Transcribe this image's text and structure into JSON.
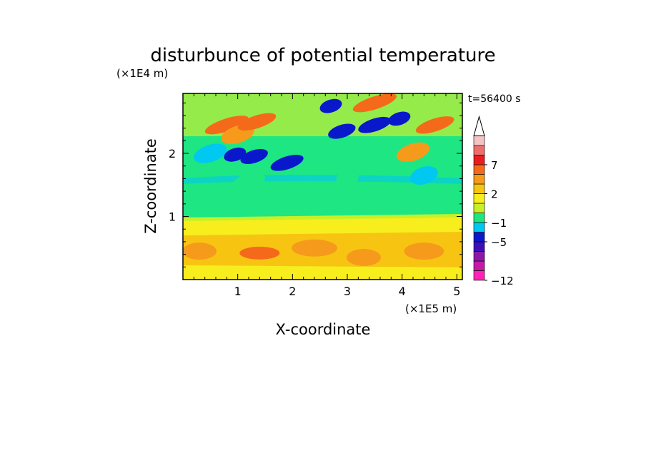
{
  "chart_data": {
    "type": "heatmap",
    "title": "disturbunce of potential temperature",
    "xlabel": "X-coordinate",
    "ylabel": "Z-coordinate",
    "x_scale_label": "(×1E5 m)",
    "y_scale_label": "(×1E4 m)",
    "time_label": "t=56400 s",
    "xlim": [
      0,
      5.1
    ],
    "ylim": [
      0,
      2.95
    ],
    "x_ticks": [
      1,
      2,
      3,
      4,
      5
    ],
    "y_ticks": [
      1,
      2
    ],
    "colorbar": {
      "levels": [
        -12,
        -11,
        -9,
        -7,
        -5,
        -3,
        -1,
        0,
        1,
        2,
        3,
        5,
        7,
        9,
        11
      ],
      "colors": [
        "#ff22b4",
        "#c41aa6",
        "#8c18a8",
        "#3c10b8",
        "#0a18cc",
        "#00c8f0",
        "#1ee682",
        "#c8f028",
        "#f8ee1e",
        "#f8c412",
        "#f69a1c",
        "#f46a1a",
        "#e81e1e",
        "#ee6e6e",
        "#f4c4c4"
      ],
      "tick_labels": [
        {
          "label": "−12",
          "value": -12
        },
        {
          "label": "−5",
          "value": -5
        },
        {
          "label": "−1",
          "value": -1
        },
        {
          "label": "2",
          "value": 2
        },
        {
          "label": "7",
          "value": 7
        }
      ]
    },
    "field_features": [
      {
        "x": 0.3,
        "z": 0.45,
        "value": 3
      },
      {
        "x": 1.4,
        "z": 0.42,
        "value": 5
      },
      {
        "x": 2.4,
        "z": 0.5,
        "value": 3
      },
      {
        "x": 3.3,
        "z": 0.35,
        "value": 3
      },
      {
        "x": 4.4,
        "z": 0.45,
        "value": 3
      },
      {
        "x": 0.8,
        "z": 2.45,
        "value": 5
      },
      {
        "x": 1.0,
        "z": 2.3,
        "value": 3
      },
      {
        "x": 1.35,
        "z": 2.5,
        "value": 5
      },
      {
        "x": 3.5,
        "z": 2.8,
        "value": 5
      },
      {
        "x": 4.2,
        "z": 2.02,
        "value": 3
      },
      {
        "x": 4.6,
        "z": 2.45,
        "value": 5
      },
      {
        "x": 0.5,
        "z": 2.0,
        "value": -3
      },
      {
        "x": 0.95,
        "z": 1.98,
        "value": -5
      },
      {
        "x": 1.3,
        "z": 1.95,
        "value": -5
      },
      {
        "x": 1.9,
        "z": 1.85,
        "value": -5
      },
      {
        "x": 2.7,
        "z": 2.75,
        "value": -5
      },
      {
        "x": 2.9,
        "z": 2.35,
        "value": -5
      },
      {
        "x": 3.5,
        "z": 2.45,
        "value": -5
      },
      {
        "x": 3.95,
        "z": 2.55,
        "value": -5
      },
      {
        "x": 4.4,
        "z": 1.65,
        "value": -3
      },
      {
        "x": 1.2,
        "z": 1.55,
        "value": -1
      },
      {
        "x": 3.0,
        "z": 1.6,
        "value": -1
      }
    ]
  }
}
